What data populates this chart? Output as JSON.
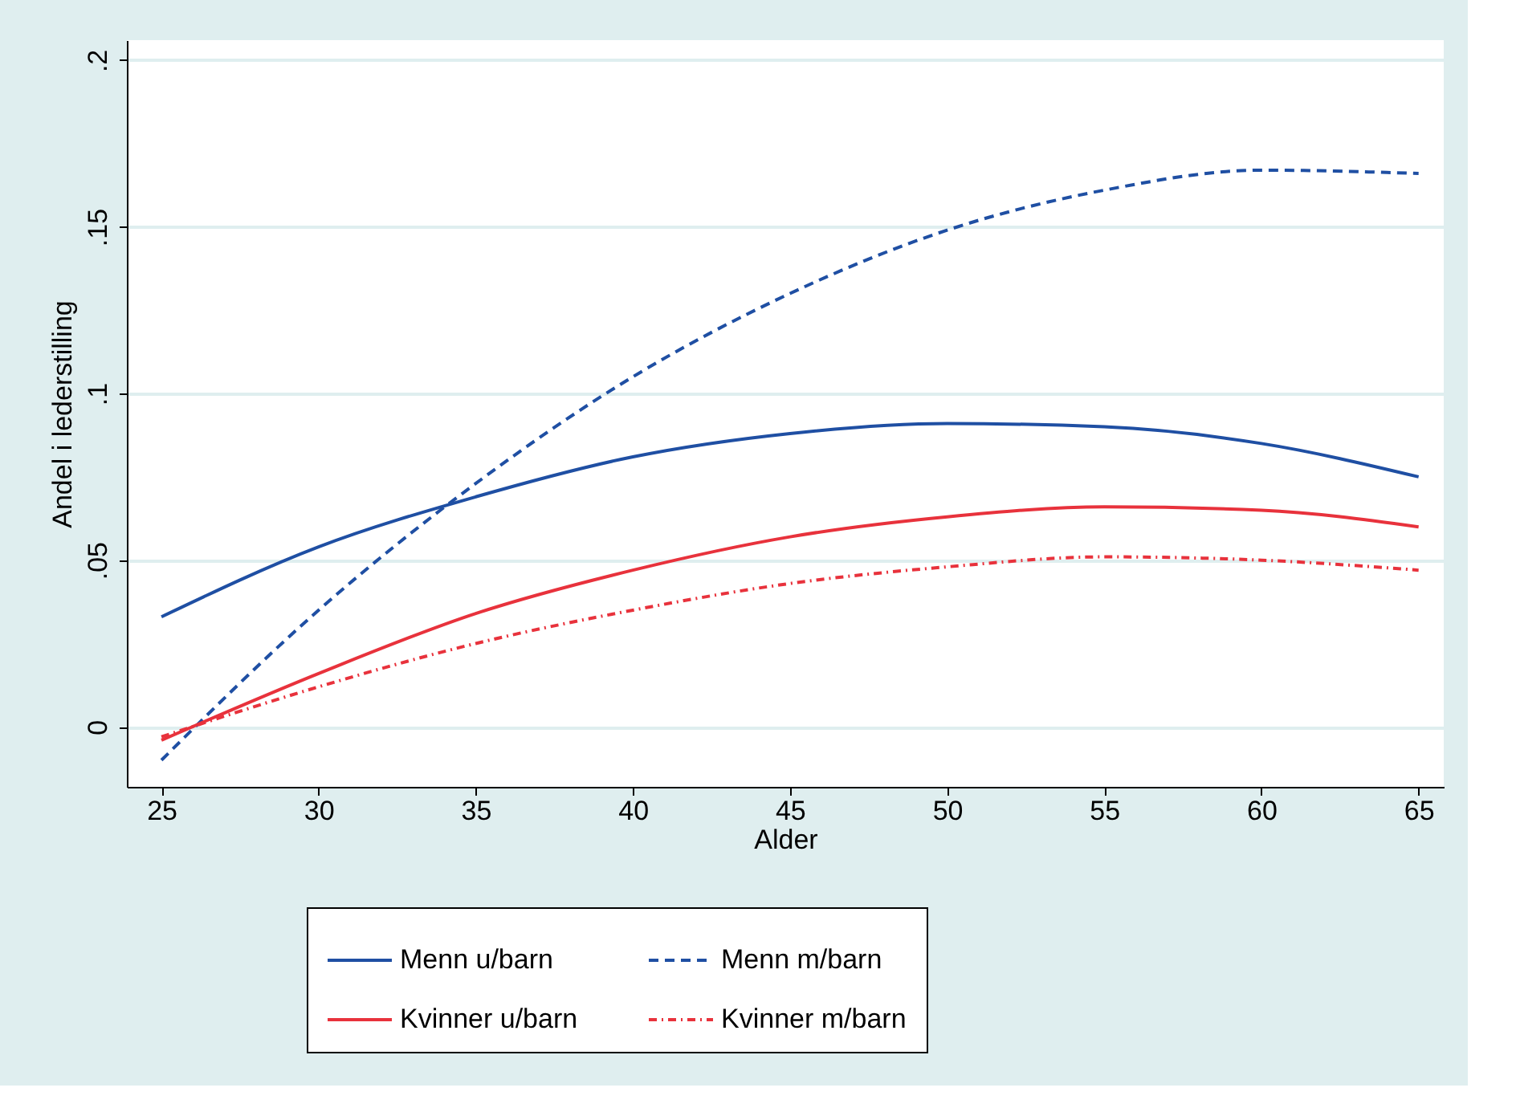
{
  "chart_data": {
    "type": "line",
    "xlabel": "Alder",
    "ylabel": "Andel i lederstilling",
    "x": [
      25,
      30,
      35,
      40,
      45,
      50,
      55,
      60,
      65
    ],
    "series": [
      {
        "name": "Menn u/barn",
        "color": "#1f4fa3",
        "line_style": "solid",
        "values": [
          0.033,
          0.054,
          0.069,
          0.081,
          0.088,
          0.091,
          0.09,
          0.085,
          0.075
        ]
      },
      {
        "name": "Menn m/barn",
        "color": "#1f4fa3",
        "line_style": "dashed",
        "values": [
          -0.01,
          0.035,
          0.073,
          0.105,
          0.13,
          0.149,
          0.161,
          0.167,
          0.166
        ]
      },
      {
        "name": "Kvinner u/barn",
        "color": "#e8323c",
        "line_style": "solid",
        "values": [
          -0.004,
          0.016,
          0.034,
          0.047,
          0.057,
          0.063,
          0.066,
          0.065,
          0.06
        ]
      },
      {
        "name": "Kvinner m/barn",
        "color": "#e8323c",
        "line_style": "dotted",
        "values": [
          -0.003,
          0.012,
          0.025,
          0.035,
          0.043,
          0.048,
          0.051,
          0.05,
          0.047
        ]
      }
    ],
    "xlim": [
      23.9,
      65.8
    ],
    "ylim": [
      -0.018,
      0.206
    ],
    "xticks": [
      25,
      30,
      35,
      40,
      45,
      50,
      55,
      60,
      65
    ],
    "yticks": [
      0,
      {
        "value": 0.05,
        "label": ".05"
      },
      {
        "value": 0.1,
        "label": ".1"
      },
      {
        "value": 0.15,
        "label": ".15"
      },
      {
        "value": 0.2,
        "label": ".2"
      }
    ],
    "grid": "y",
    "legend": "bottom",
    "marker": "none"
  }
}
